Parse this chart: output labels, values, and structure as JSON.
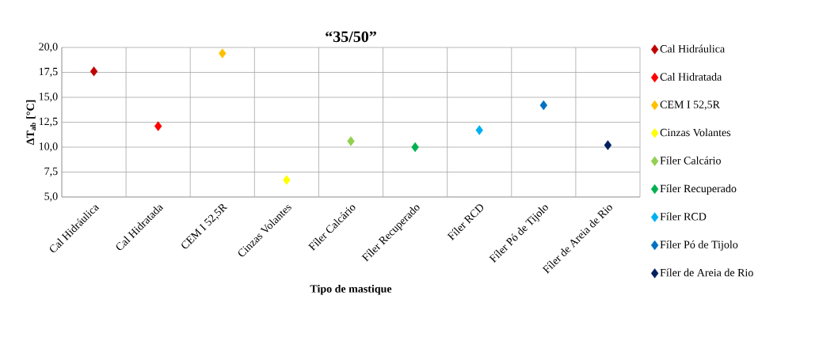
{
  "chart_data": {
    "type": "scatter",
    "title": "“35/50”",
    "xlabel": "Tipo de mastique",
    "ylabel": "ΔT$_{ab}$ [°C]",
    "categories": [
      "Cal Hidráulica",
      "Cal Hidratada",
      "CEM I 52,5R",
      "Cinzas Volantes",
      "Fíler Calcário",
      "Fíler Recuperado",
      "Fíler RCD",
      "Fíler Pó de Tijolo",
      "Fíler de Areia de Rio"
    ],
    "series": [
      {
        "name": "Cal Hidráulica",
        "color": "#c00000",
        "values": [
          17.6,
          null,
          null,
          null,
          null,
          null,
          null,
          null,
          null
        ]
      },
      {
        "name": "Cal Hidratada",
        "color": "#ff0000",
        "values": [
          null,
          12.1,
          null,
          null,
          null,
          null,
          null,
          null,
          null
        ]
      },
      {
        "name": "CEM I 52,5R",
        "color": "#ffc000",
        "values": [
          null,
          null,
          19.4,
          null,
          null,
          null,
          null,
          null,
          null
        ]
      },
      {
        "name": "Cinzas Volantes",
        "color": "#ffff00",
        "values": [
          null,
          null,
          null,
          6.7,
          null,
          null,
          null,
          null,
          null
        ]
      },
      {
        "name": "Fíler Calcário",
        "color": "#92d050",
        "values": [
          null,
          null,
          null,
          null,
          10.6,
          null,
          null,
          null,
          null
        ]
      },
      {
        "name": "Fíler Recuperado",
        "color": "#00b050",
        "values": [
          null,
          null,
          null,
          null,
          null,
          10.0,
          null,
          null,
          null
        ]
      },
      {
        "name": "Fíler RCD",
        "color": "#00b0f0",
        "values": [
          null,
          null,
          null,
          null,
          null,
          null,
          11.7,
          null,
          null
        ]
      },
      {
        "name": "Fíler Pó de Tijolo",
        "color": "#0070c0",
        "values": [
          null,
          null,
          null,
          null,
          null,
          null,
          null,
          14.2,
          null
        ]
      },
      {
        "name": "Fíler de Areia de Rio",
        "color": "#002060",
        "values": [
          null,
          null,
          null,
          null,
          null,
          null,
          null,
          null,
          10.2
        ]
      }
    ],
    "ylim": [
      5,
      20
    ],
    "yticks": [
      {
        "value": 5,
        "label": "5,0"
      },
      {
        "value": 7.5,
        "label": "7,5"
      },
      {
        "value": 10,
        "label": "10,0"
      },
      {
        "value": 12.5,
        "label": "12,5"
      },
      {
        "value": 15,
        "label": "15,0"
      },
      {
        "value": 17.5,
        "label": "17,5"
      },
      {
        "value": 20,
        "label": "20,0"
      }
    ],
    "grid": true,
    "legend": "right",
    "marker": "diamond"
  }
}
